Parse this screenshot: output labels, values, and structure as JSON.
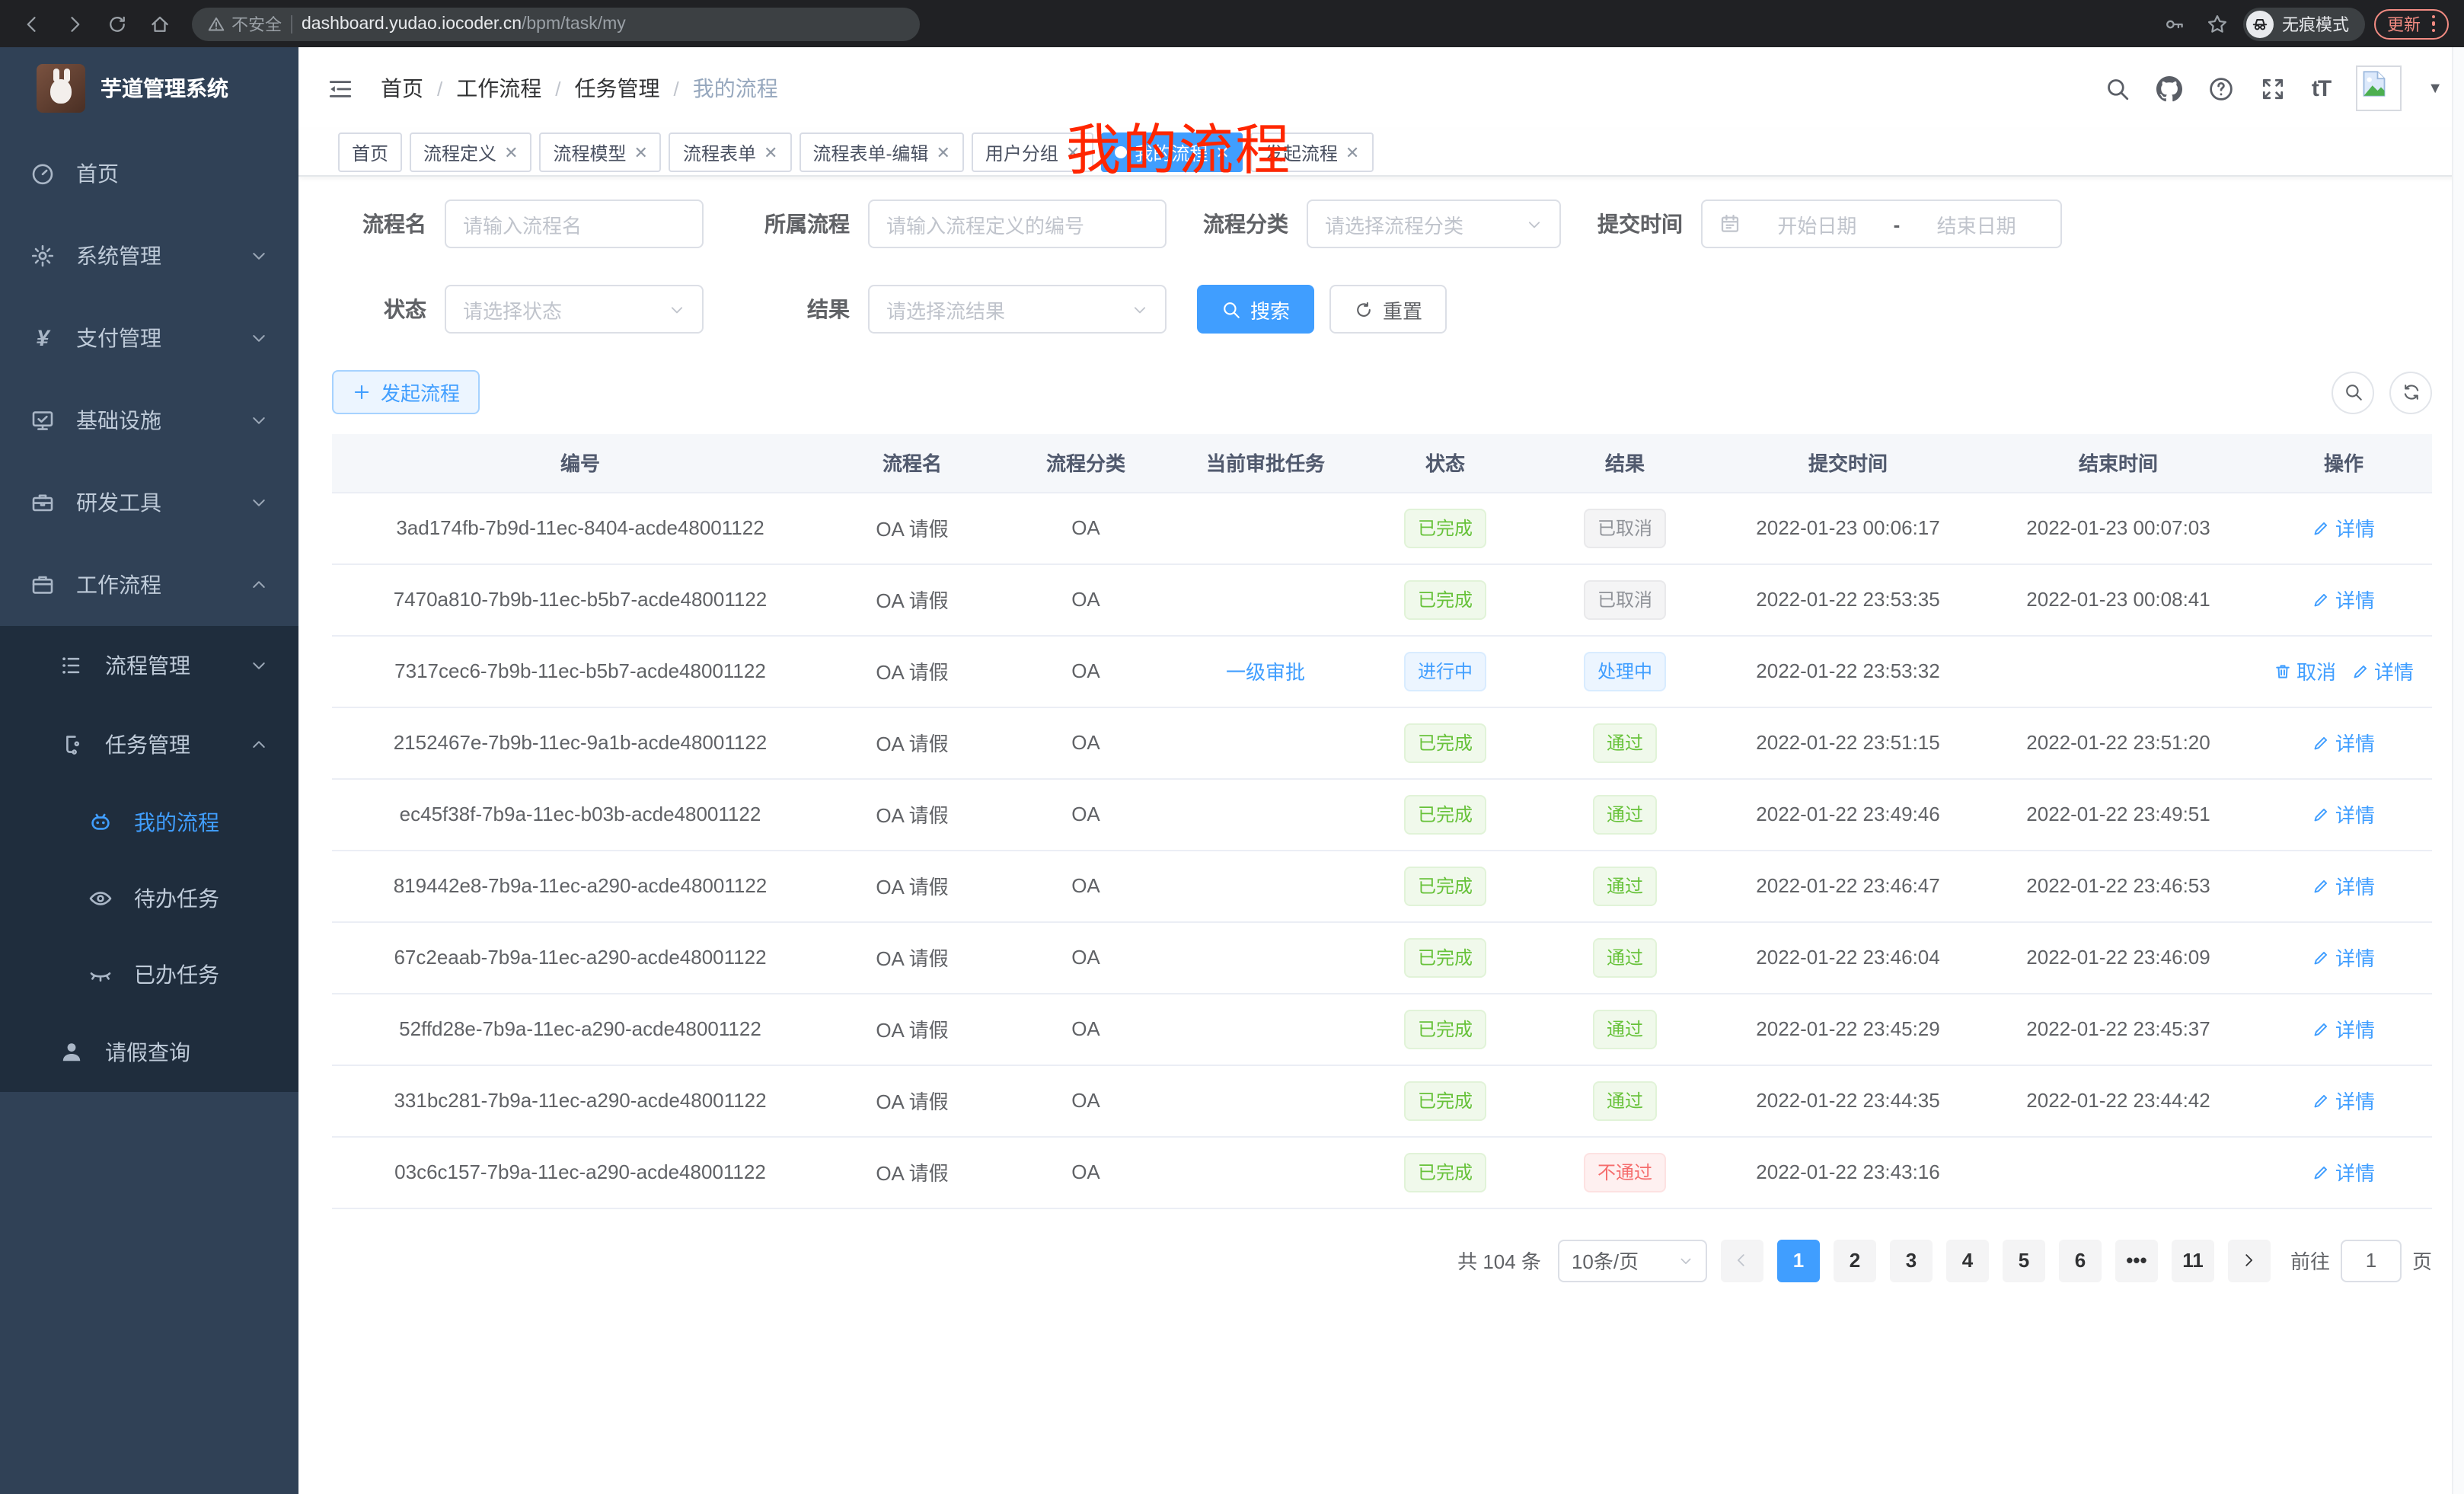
{
  "browser": {
    "security_label": "不安全",
    "url_host": "dashboard.yudao.iocoder.cn",
    "url_path": "/bpm/task/my",
    "incognito_label": "无痕模式",
    "update_label": "更新"
  },
  "sidebar": {
    "title": "芋道管理系统",
    "menu": [
      {
        "key": "home",
        "label": "首页",
        "icon": "dashboard-icon",
        "level": 1
      },
      {
        "key": "system",
        "label": "系统管理",
        "icon": "gear-icon",
        "level": 1,
        "chevron": "down"
      },
      {
        "key": "payment",
        "label": "支付管理",
        "icon": "yen-icon",
        "level": 1,
        "chevron": "down"
      },
      {
        "key": "infrastructure",
        "label": "基础设施",
        "icon": "monitor-icon",
        "level": 1,
        "chevron": "down"
      },
      {
        "key": "devtools",
        "label": "研发工具",
        "icon": "toolbox-icon",
        "level": 1,
        "chevron": "down"
      },
      {
        "key": "workflow",
        "label": "工作流程",
        "icon": "briefcase-icon",
        "level": 1,
        "chevron": "up"
      },
      {
        "key": "process-mgmt",
        "label": "流程管理",
        "icon": "tree-icon",
        "level": 2,
        "chevron": "down",
        "in_group": true
      },
      {
        "key": "task-mgmt",
        "label": "任务管理",
        "icon": "flow-icon",
        "level": 2,
        "chevron": "up",
        "in_group": true
      },
      {
        "key": "my-process",
        "label": "我的流程",
        "icon": "robot-icon",
        "level": 3,
        "active": true,
        "in_group": true
      },
      {
        "key": "todo-tasks",
        "label": "待办任务",
        "icon": "eye-icon",
        "level": 3,
        "in_group": true
      },
      {
        "key": "done-tasks",
        "label": "已办任务",
        "icon": "eye-closed-icon",
        "level": 3,
        "in_group": true
      },
      {
        "key": "leave-query",
        "label": "请假查询",
        "icon": "user-icon",
        "level": 2,
        "in_group": true
      }
    ]
  },
  "header": {
    "breadcrumb": [
      "首页",
      "工作流程",
      "任务管理",
      "我的流程"
    ],
    "overlay_title": "我的流程"
  },
  "tabs": [
    {
      "key": "home",
      "label": "首页"
    },
    {
      "key": "process-definition",
      "label": "流程定义",
      "closable": true
    },
    {
      "key": "process-model",
      "label": "流程模型",
      "closable": true
    },
    {
      "key": "process-form",
      "label": "流程表单",
      "closable": true
    },
    {
      "key": "process-form-edit",
      "label": "流程表单-编辑",
      "closable": true
    },
    {
      "key": "user-group",
      "label": "用户分组",
      "closable": true
    },
    {
      "key": "my-process",
      "label": "我的流程",
      "closable": true,
      "active": true
    },
    {
      "key": "start-process",
      "label": "发起流程",
      "closable": true
    }
  ],
  "filters": {
    "name": {
      "label": "流程名",
      "placeholder": "请输入流程名"
    },
    "parent": {
      "label": "所属流程",
      "placeholder": "请输入流程定义的编号"
    },
    "category": {
      "label": "流程分类",
      "placeholder": "请选择流程分类"
    },
    "submit_time": {
      "label": "提交时间",
      "start_placeholder": "开始日期",
      "separator": "-",
      "end_placeholder": "结束日期"
    },
    "status": {
      "label": "状态",
      "placeholder": "请选择状态"
    },
    "result": {
      "label": "结果",
      "placeholder": "请选择流结果"
    },
    "search_label": "搜索",
    "reset_label": "重置"
  },
  "toolbar": {
    "create_label": "发起流程"
  },
  "table": {
    "columns": [
      "编号",
      "流程名",
      "流程分类",
      "当前审批任务",
      "状态",
      "结果",
      "提交时间",
      "结束时间",
      "操作"
    ],
    "action_cancel": "取消",
    "action_detail": "详情",
    "rows": [
      {
        "id": "3ad174fb-7b9d-11ec-8404-acde48001122",
        "name": "OA 请假",
        "category": "OA",
        "task": "",
        "status": "已完成",
        "status_type": "success",
        "result": "已取消",
        "result_type": "info",
        "submit": "2022-01-23 00:06:17",
        "end": "2022-01-23 00:07:03",
        "can_cancel": false
      },
      {
        "id": "7470a810-7b9b-11ec-b5b7-acde48001122",
        "name": "OA 请假",
        "category": "OA",
        "task": "",
        "status": "已完成",
        "status_type": "success",
        "result": "已取消",
        "result_type": "info",
        "submit": "2022-01-22 23:53:35",
        "end": "2022-01-23 00:08:41",
        "can_cancel": false
      },
      {
        "id": "7317cec6-7b9b-11ec-b5b7-acde48001122",
        "name": "OA 请假",
        "category": "OA",
        "task": "一级审批",
        "status": "进行中",
        "status_type": "primary",
        "result": "处理中",
        "result_type": "primary",
        "submit": "2022-01-22 23:53:32",
        "end": "",
        "can_cancel": true
      },
      {
        "id": "2152467e-7b9b-11ec-9a1b-acde48001122",
        "name": "OA 请假",
        "category": "OA",
        "task": "",
        "status": "已完成",
        "status_type": "success",
        "result": "通过",
        "result_type": "success",
        "submit": "2022-01-22 23:51:15",
        "end": "2022-01-22 23:51:20",
        "can_cancel": false
      },
      {
        "id": "ec45f38f-7b9a-11ec-b03b-acde48001122",
        "name": "OA 请假",
        "category": "OA",
        "task": "",
        "status": "已完成",
        "status_type": "success",
        "result": "通过",
        "result_type": "success",
        "submit": "2022-01-22 23:49:46",
        "end": "2022-01-22 23:49:51",
        "can_cancel": false
      },
      {
        "id": "819442e8-7b9a-11ec-a290-acde48001122",
        "name": "OA 请假",
        "category": "OA",
        "task": "",
        "status": "已完成",
        "status_type": "success",
        "result": "通过",
        "result_type": "success",
        "submit": "2022-01-22 23:46:47",
        "end": "2022-01-22 23:46:53",
        "can_cancel": false
      },
      {
        "id": "67c2eaab-7b9a-11ec-a290-acde48001122",
        "name": "OA 请假",
        "category": "OA",
        "task": "",
        "status": "已完成",
        "status_type": "success",
        "result": "通过",
        "result_type": "success",
        "submit": "2022-01-22 23:46:04",
        "end": "2022-01-22 23:46:09",
        "can_cancel": false
      },
      {
        "id": "52ffd28e-7b9a-11ec-a290-acde48001122",
        "name": "OA 请假",
        "category": "OA",
        "task": "",
        "status": "已完成",
        "status_type": "success",
        "result": "通过",
        "result_type": "success",
        "submit": "2022-01-22 23:45:29",
        "end": "2022-01-22 23:45:37",
        "can_cancel": false
      },
      {
        "id": "331bc281-7b9a-11ec-a290-acde48001122",
        "name": "OA 请假",
        "category": "OA",
        "task": "",
        "status": "已完成",
        "status_type": "success",
        "result": "通过",
        "result_type": "success",
        "submit": "2022-01-22 23:44:35",
        "end": "2022-01-22 23:44:42",
        "can_cancel": false
      },
      {
        "id": "03c6c157-7b9a-11ec-a290-acde48001122",
        "name": "OA 请假",
        "category": "OA",
        "task": "",
        "status": "已完成",
        "status_type": "success",
        "result": "不通过",
        "result_type": "danger",
        "submit": "2022-01-22 23:43:16",
        "end": "",
        "can_cancel": false
      }
    ]
  },
  "pagination": {
    "total_text": "共 104 条",
    "page_size": "10条/页",
    "pages": [
      {
        "label": "1",
        "active": true
      },
      {
        "label": "2"
      },
      {
        "label": "3"
      },
      {
        "label": "4"
      },
      {
        "label": "5"
      },
      {
        "label": "6"
      },
      {
        "label": "•••",
        "ellipsis": true
      },
      {
        "label": "11"
      }
    ],
    "goto_label": "前往",
    "goto_value": "1",
    "goto_unit": "页"
  },
  "colors": {
    "accent": "#409eff",
    "sidebar": "#304156",
    "submenu": "#1f2d3d",
    "success": "#67c23a",
    "danger": "#f56c6c",
    "info": "#909399",
    "annotation_red": "#ff2600"
  }
}
